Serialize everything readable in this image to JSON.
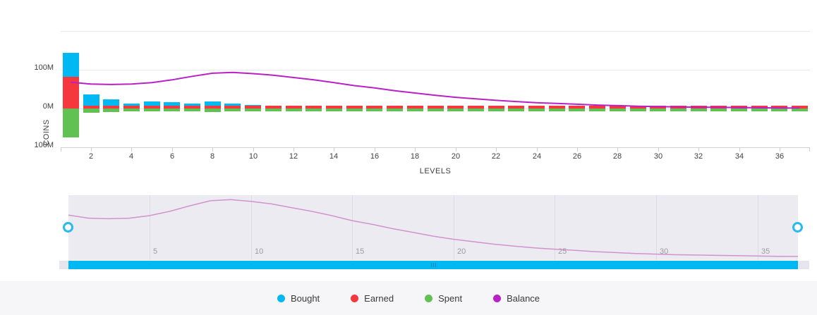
{
  "chart_data": {
    "type": "bar",
    "subtype": "stacked-column-with-line-overlay",
    "title": "",
    "xlabel": "LEVELS",
    "ylabel": "COINS",
    "levels": 37,
    "x_ticks": [
      2,
      4,
      6,
      8,
      10,
      12,
      14,
      16,
      18,
      20,
      22,
      24,
      26,
      28,
      30,
      32,
      34,
      36
    ],
    "y_unit": "M",
    "y_tick_labels": [
      "100M",
      "0M",
      "100M"
    ],
    "y_tick_values": [
      100,
      0,
      -100
    ],
    "ylim": [
      -200,
      200
    ],
    "grid": true,
    "legend_position": "bottom",
    "series": [
      {
        "name": "Bought",
        "type": "column",
        "stack": "positive",
        "color": "#00b9f2",
        "values": [
          62,
          29,
          16,
          6,
          11,
          9,
          5,
          12,
          6,
          2,
          1.5,
          1,
          1,
          1,
          1,
          1,
          1,
          1,
          1,
          1,
          1,
          1,
          1,
          1,
          0.5,
          0.5,
          0.5,
          0.5,
          0.5,
          0.5,
          0.5,
          0.5,
          0.5,
          0.5,
          0.5,
          0.5,
          0.5
        ]
      },
      {
        "name": "Earned",
        "type": "column",
        "stack": "positive",
        "color": "#f5383e",
        "values": [
          82,
          7,
          7,
          7,
          7,
          7,
          7,
          7,
          7,
          7,
          6.5,
          6.5,
          6.5,
          6.5,
          6.5,
          6.5,
          6.5,
          6.5,
          6.5,
          6.5,
          6.5,
          6.5,
          6.5,
          6.5,
          6.5,
          6.5,
          6.5,
          6.5,
          6.5,
          6.5,
          6.5,
          6.5,
          6.5,
          6.5,
          6.5,
          6.5,
          6.5
        ]
      },
      {
        "name": "Spent",
        "type": "column",
        "stack": "negative",
        "color": "#61c152",
        "values": [
          75,
          10,
          9,
          8,
          8,
          8,
          8,
          9,
          8,
          8,
          7.5,
          7.5,
          7,
          7,
          7,
          7,
          7,
          7,
          7,
          7,
          7,
          7,
          7,
          7,
          7,
          7,
          7,
          7,
          7,
          7,
          7,
          7,
          7,
          7,
          7,
          7,
          7
        ]
      },
      {
        "name": "Balance",
        "type": "line",
        "color": "#b822c4",
        "values": [
          68,
          63,
          62,
          63,
          67,
          74,
          83,
          91,
          93,
          90,
          86,
          80,
          74,
          67,
          59,
          53,
          46,
          40,
          34,
          29,
          25,
          21,
          18,
          15,
          13,
          11,
          9,
          7.5,
          6,
          5,
          4,
          3.5,
          3,
          2.5,
          2,
          1.5,
          1.2
        ]
      }
    ]
  },
  "navigator": {
    "labels": [
      "5",
      "10",
      "15",
      "20",
      "25",
      "30",
      "35"
    ],
    "label_levels": [
      5,
      10,
      15,
      20,
      25,
      30,
      35
    ],
    "bg_color": "#ecebf2",
    "grid_color": "#dcdbe3",
    "line_color": "#d193cd",
    "handle_color": "#2ab9f2"
  },
  "scrollbar": {
    "thumb_color": "#00b9f2",
    "track_color": "#e6e5ed",
    "grip_color": "#0f85b5"
  },
  "legend": {
    "items": [
      {
        "label": "Bought",
        "color": "#00b9f2"
      },
      {
        "label": "Earned",
        "color": "#f5383e"
      },
      {
        "label": "Spent",
        "color": "#61c152"
      },
      {
        "label": "Balance",
        "color": "#b822c4"
      }
    ]
  }
}
